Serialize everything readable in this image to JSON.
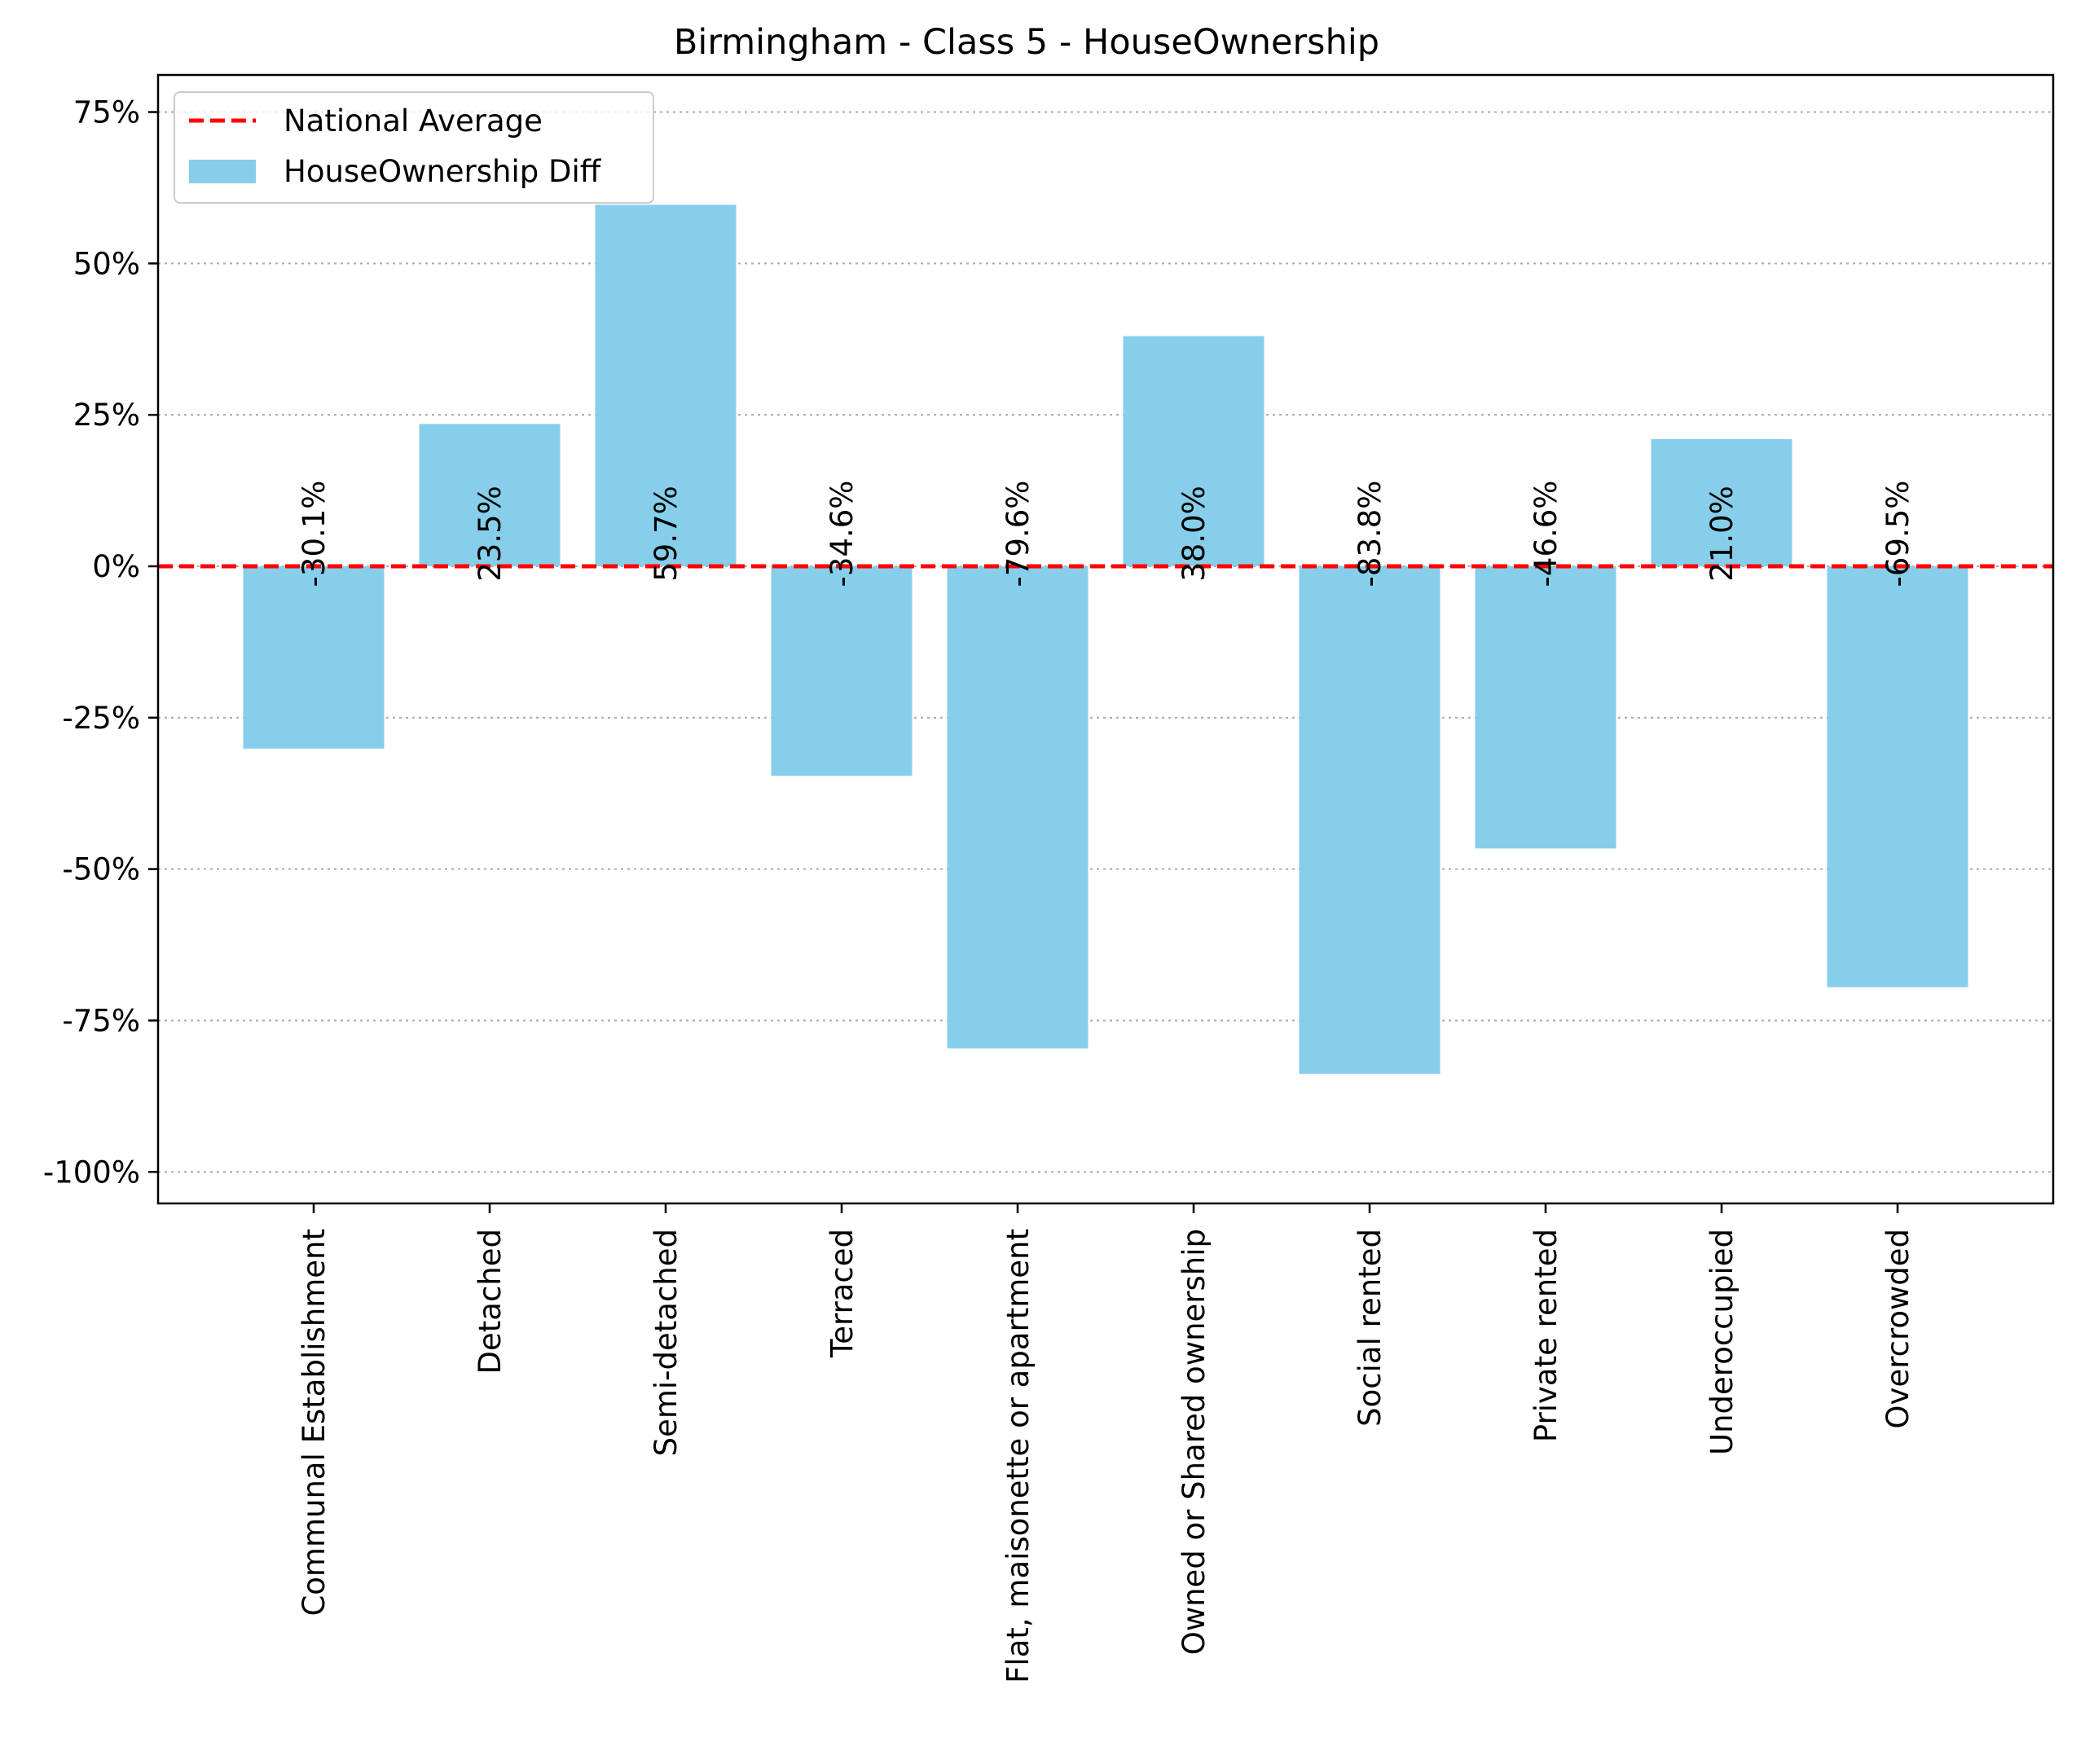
{
  "chart_data": {
    "type": "bar",
    "title": "Birmingham - Class 5 - HouseOwnership",
    "xlabel": "",
    "ylabel": "",
    "categories": [
      "Communal Establishment",
      "Detached",
      "Semi-detached",
      "Terraced",
      "Flat, maisonette or apartment",
      "Owned or Shared ownership",
      "Social rented",
      "Private rented",
      "Underoccupied",
      "Overcrowded"
    ],
    "series": [
      {
        "name": "HouseOwnership Diff",
        "values": [
          -30.1,
          23.5,
          59.7,
          -34.6,
          -79.6,
          38.0,
          -83.8,
          -46.6,
          21.0,
          -69.5
        ],
        "color": "#87ceeb"
      }
    ],
    "bar_labels": [
      "-30.1%",
      "23.5%",
      "59.7%",
      "-34.6%",
      "-79.6%",
      "38.0%",
      "-83.8%",
      "-46.6%",
      "21.0%",
      "-69.5%"
    ],
    "reference_line": {
      "name": "National Average",
      "value": 0,
      "color": "#ff0000",
      "style": "dashed"
    },
    "ylim": [
      -105,
      81
    ],
    "yticks": [
      75,
      50,
      25,
      0,
      -25,
      -50,
      -75,
      -100
    ],
    "ytick_labels": [
      "75%",
      "50%",
      "25%",
      "0%",
      "-25%",
      "-50%",
      "-75%",
      "-100%"
    ],
    "grid": {
      "axis": "y",
      "style": "dotted",
      "color": "#aaaaaa"
    },
    "legend": {
      "position": "top-left",
      "entries": [
        "National Average",
        "HouseOwnership Diff"
      ]
    }
  }
}
